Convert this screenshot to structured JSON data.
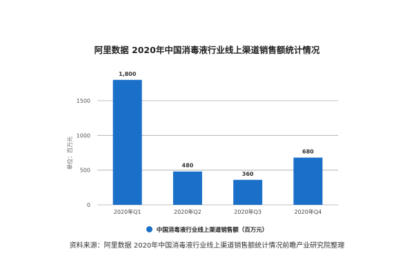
{
  "chart_data": {
    "type": "bar",
    "title": "阿里数据 2020年中国消毒液行业线上渠道销售额统计情况",
    "categories": [
      "2020年Q1",
      "2020年Q2",
      "2020年Q3",
      "2020年Q4"
    ],
    "series": [
      {
        "name": "中国消毒液行业线上渠道销售额（百万元）",
        "values": [
          1800,
          480,
          360,
          680
        ]
      }
    ],
    "data_labels": [
      "1,800",
      "480",
      "360",
      "680"
    ],
    "ylabel": "单位：百万元",
    "yticks": [
      0,
      500,
      1000,
      1500
    ],
    "ylim": [
      0,
      1800
    ],
    "grid": true,
    "legend": "bottom",
    "bar_color": "#1a6fc9"
  },
  "source": "资料来源：阿里数据 2020年中国消毒液行业线上渠道销售额统计情况前瞻产业研究院整理"
}
